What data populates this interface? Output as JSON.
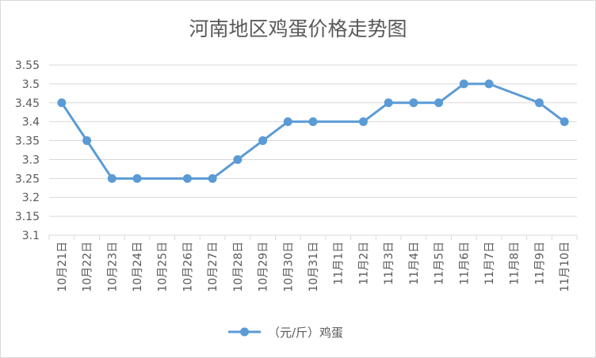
{
  "chart_data": {
    "type": "line",
    "title": "河南地区鸡蛋价格走势图",
    "xlabel": "",
    "ylabel": "",
    "categories": [
      "10月21日",
      "10月22日",
      "10月23日",
      "10月24日",
      "10月25日",
      "10月26日",
      "10月27日",
      "10月28日",
      "10月29日",
      "10月30日",
      "10月31日",
      "11月1日",
      "11月2日",
      "11月3日",
      "11月4日",
      "11月5日",
      "11月6日",
      "11月7日",
      "11月8日",
      "11月9日",
      "11月10日"
    ],
    "series": [
      {
        "name": "（元/斤）鸡蛋",
        "values": [
          3.45,
          3.35,
          3.25,
          3.25,
          null,
          3.25,
          3.25,
          3.3,
          3.35,
          3.4,
          3.4,
          null,
          3.4,
          3.45,
          3.45,
          3.45,
          3.5,
          3.5,
          null,
          3.45,
          3.4
        ]
      }
    ],
    "ylim": [
      3.1,
      3.55
    ],
    "yticks": [
      "3.1",
      "3.15",
      "3.2",
      "3.25",
      "3.3",
      "3.35",
      "3.4",
      "3.45",
      "3.5",
      "3.55"
    ],
    "grid": true,
    "legend_position": "bottom",
    "colors": {
      "series": "#5b9bd5",
      "grid": "#d9d9d9",
      "text": "#595959"
    }
  }
}
